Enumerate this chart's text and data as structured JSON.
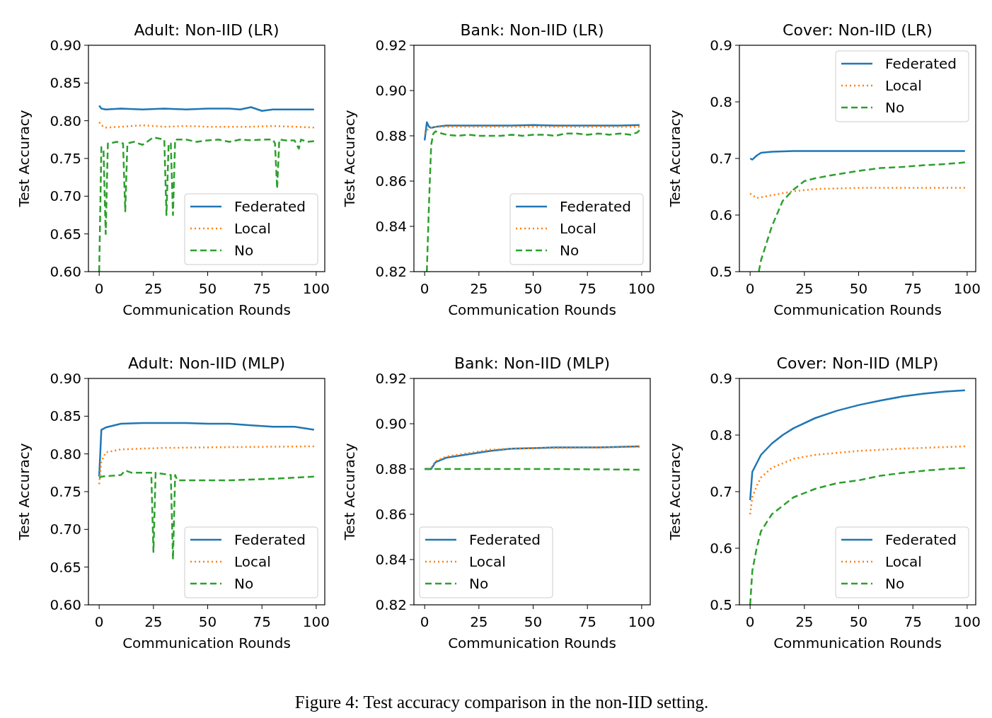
{
  "chart_data": [
    {
      "type": "line",
      "title": "Adult: Non-IID (LR)",
      "xlabel": "Communication Rounds",
      "ylabel": "Test Accuracy",
      "xlim": [
        -4.95,
        103.95
      ],
      "xticks": [
        0,
        25,
        50,
        75,
        100
      ],
      "ylim": [
        0.6,
        0.9
      ],
      "yticks": [
        {
          "value": 0.6,
          "label": "0.60"
        },
        0.65,
        {
          "value": 0.7,
          "label": "0.70"
        },
        0.75,
        {
          "value": 0.8,
          "label": "0.80"
        },
        0.85,
        {
          "value": 0.9,
          "label": "0.90"
        }
      ],
      "legend": "bottom right",
      "series": [
        {
          "name": "Federated",
          "color": "#1f77b4",
          "line_style": "solid",
          "x": [
            0,
            1,
            3,
            10,
            20,
            30,
            40,
            50,
            60,
            65,
            70,
            75,
            80,
            90,
            99
          ],
          "values": [
            0.82,
            0.816,
            0.815,
            0.816,
            0.815,
            0.816,
            0.815,
            0.816,
            0.816,
            0.815,
            0.818,
            0.813,
            0.815,
            0.815,
            0.815
          ]
        },
        {
          "name": "Local",
          "color": "#ff7f0e",
          "line_style": "dotted",
          "x": [
            0,
            1,
            3,
            10,
            20,
            30,
            40,
            50,
            60,
            70,
            80,
            90,
            99
          ],
          "values": [
            0.798,
            0.794,
            0.791,
            0.792,
            0.794,
            0.792,
            0.793,
            0.792,
            0.792,
            0.792,
            0.793,
            0.792,
            0.791
          ]
        },
        {
          "name": "No",
          "color": "#2ca02c",
          "line_style": "dashed",
          "x": [
            0,
            1,
            2,
            3,
            4,
            5,
            8,
            11,
            12,
            13,
            16,
            20,
            25,
            30,
            31,
            32,
            33,
            34,
            35,
            40,
            45,
            50,
            55,
            60,
            65,
            70,
            75,
            80,
            81,
            82,
            83,
            86,
            90,
            92,
            93,
            96,
            99
          ],
          "values": [
            0.6,
            0.765,
            0.76,
            0.65,
            0.77,
            0.77,
            0.772,
            0.77,
            0.68,
            0.77,
            0.772,
            0.768,
            0.778,
            0.775,
            0.675,
            0.77,
            0.77,
            0.675,
            0.775,
            0.775,
            0.772,
            0.774,
            0.775,
            0.772,
            0.775,
            0.774,
            0.775,
            0.775,
            0.77,
            0.71,
            0.775,
            0.774,
            0.774,
            0.763,
            0.775,
            0.772,
            0.773
          ]
        }
      ]
    },
    {
      "type": "line",
      "title": "Bank: Non-IID (LR)",
      "xlabel": "Communication Rounds",
      "ylabel": "Test Accuracy",
      "xlim": [
        -4.95,
        103.95
      ],
      "xticks": [
        0,
        25,
        50,
        75,
        100
      ],
      "ylim": [
        0.82,
        0.92
      ],
      "yticks": [
        0.82,
        0.84,
        0.86,
        0.88,
        {
          "value": 0.9,
          "label": "0.90"
        },
        0.92
      ],
      "legend": "bottom right",
      "series": [
        {
          "name": "Federated",
          "color": "#1f77b4",
          "line_style": "solid",
          "x": [
            0,
            1,
            2,
            3,
            5,
            10,
            20,
            30,
            40,
            50,
            60,
            70,
            80,
            90,
            99
          ],
          "values": [
            0.878,
            0.886,
            0.884,
            0.8835,
            0.884,
            0.8845,
            0.8845,
            0.8845,
            0.8845,
            0.8848,
            0.8845,
            0.8845,
            0.8845,
            0.8845,
            0.8848
          ]
        },
        {
          "name": "Local",
          "color": "#ff7f0e",
          "line_style": "dotted",
          "x": [
            0,
            1,
            3,
            5,
            10,
            20,
            40,
            60,
            80,
            99
          ],
          "values": [
            0.881,
            0.8825,
            0.8835,
            0.884,
            0.884,
            0.884,
            0.884,
            0.884,
            0.884,
            0.884
          ]
        },
        {
          "name": "No",
          "color": "#2ca02c",
          "line_style": "dashed",
          "x": [
            1,
            2,
            3,
            4,
            5,
            8,
            10,
            15,
            20,
            25,
            30,
            35,
            40,
            45,
            50,
            55,
            60,
            65,
            70,
            75,
            80,
            85,
            90,
            95,
            98,
            99
          ],
          "values": [
            0.82,
            0.85,
            0.876,
            0.881,
            0.882,
            0.881,
            0.8805,
            0.88,
            0.8805,
            0.88,
            0.88,
            0.88,
            0.8805,
            0.88,
            0.8805,
            0.8805,
            0.88,
            0.881,
            0.881,
            0.8805,
            0.881,
            0.8805,
            0.881,
            0.8805,
            0.8815,
            0.8825
          ]
        }
      ]
    },
    {
      "type": "line",
      "title": "Cover: Non-IID (LR)",
      "xlabel": "Communication Rounds",
      "ylabel": "Test Accuracy",
      "xlim": [
        -4.95,
        103.95
      ],
      "xticks": [
        0,
        25,
        50,
        75,
        100
      ],
      "ylim": [
        0.5,
        0.9
      ],
      "yticks": [
        0.5,
        0.6,
        0.7,
        0.8,
        0.9
      ],
      "legend": "top right",
      "series": [
        {
          "name": "Federated",
          "color": "#1f77b4",
          "line_style": "solid",
          "x": [
            0,
            1,
            3,
            5,
            10,
            20,
            40,
            60,
            80,
            99
          ],
          "values": [
            0.7,
            0.698,
            0.705,
            0.71,
            0.712,
            0.713,
            0.713,
            0.713,
            0.713,
            0.713
          ]
        },
        {
          "name": "Local",
          "color": "#ff7f0e",
          "line_style": "dotted",
          "x": [
            0,
            3,
            10,
            20,
            30,
            50,
            70,
            99
          ],
          "values": [
            0.638,
            0.63,
            0.635,
            0.642,
            0.646,
            0.648,
            0.648,
            0.648
          ]
        },
        {
          "name": "No",
          "color": "#2ca02c",
          "line_style": "dashed",
          "x": [
            4,
            5,
            10,
            15,
            20,
            25,
            30,
            40,
            50,
            60,
            70,
            80,
            90,
            99
          ],
          "values": [
            0.5,
            0.52,
            0.58,
            0.625,
            0.645,
            0.66,
            0.665,
            0.672,
            0.678,
            0.683,
            0.685,
            0.688,
            0.69,
            0.693
          ]
        }
      ]
    },
    {
      "type": "line",
      "title": "Adult: Non-IID (MLP)",
      "xlabel": "Communication Rounds",
      "ylabel": "Test Accuracy",
      "xlim": [
        -4.95,
        103.95
      ],
      "xticks": [
        0,
        25,
        50,
        75,
        100
      ],
      "ylim": [
        0.6,
        0.9
      ],
      "yticks": [
        {
          "value": 0.6,
          "label": "0.60"
        },
        0.65,
        {
          "value": 0.7,
          "label": "0.70"
        },
        0.75,
        {
          "value": 0.8,
          "label": "0.80"
        },
        0.85,
        {
          "value": 0.9,
          "label": "0.90"
        }
      ],
      "legend": "bottom right",
      "series": [
        {
          "name": "Federated",
          "color": "#1f77b4",
          "line_style": "solid",
          "x": [
            0,
            1,
            3,
            10,
            20,
            30,
            40,
            50,
            60,
            70,
            80,
            90,
            99
          ],
          "values": [
            0.77,
            0.832,
            0.835,
            0.84,
            0.841,
            0.841,
            0.841,
            0.84,
            0.84,
            0.838,
            0.836,
            0.836,
            0.832
          ]
        },
        {
          "name": "Local",
          "color": "#ff7f0e",
          "line_style": "dotted",
          "x": [
            0,
            1,
            3,
            10,
            30,
            60,
            99
          ],
          "values": [
            0.76,
            0.79,
            0.802,
            0.806,
            0.808,
            0.809,
            0.81
          ]
        },
        {
          "name": "No",
          "color": "#2ca02c",
          "line_style": "dashed",
          "x": [
            0,
            1,
            10,
            12,
            15,
            24,
            25,
            26,
            33,
            34,
            35,
            36,
            60,
            80,
            99
          ],
          "values": [
            0.768,
            0.77,
            0.772,
            0.778,
            0.775,
            0.775,
            0.67,
            0.775,
            0.772,
            0.66,
            0.772,
            0.765,
            0.765,
            0.767,
            0.77
          ]
        }
      ]
    },
    {
      "type": "line",
      "title": "Bank: Non-IID (MLP)",
      "xlabel": "Communication Rounds",
      "ylabel": "Test Accuracy",
      "xlim": [
        -4.95,
        103.95
      ],
      "xticks": [
        0,
        25,
        50,
        75,
        100
      ],
      "ylim": [
        0.82,
        0.92
      ],
      "yticks": [
        0.82,
        0.84,
        0.86,
        0.88,
        {
          "value": 0.9,
          "label": "0.90"
        },
        0.92
      ],
      "legend": "bottom left",
      "series": [
        {
          "name": "Federated",
          "color": "#1f77b4",
          "line_style": "solid",
          "x": [
            0,
            3,
            5,
            10,
            20,
            30,
            40,
            60,
            80,
            99
          ],
          "values": [
            0.88,
            0.88,
            0.883,
            0.885,
            0.8865,
            0.888,
            0.889,
            0.8895,
            0.8895,
            0.89
          ]
        },
        {
          "name": "Local",
          "color": "#ff7f0e",
          "line_style": "dotted",
          "x": [
            3,
            5,
            10,
            20,
            30,
            40,
            60,
            80,
            99
          ],
          "values": [
            0.8805,
            0.8835,
            0.8855,
            0.887,
            0.8885,
            0.889,
            0.8893,
            0.8895,
            0.8898
          ]
        },
        {
          "name": "No",
          "color": "#2ca02c",
          "line_style": "dashed",
          "x": [
            0,
            10,
            30,
            60,
            99
          ],
          "values": [
            0.88,
            0.88,
            0.88,
            0.88,
            0.8797
          ]
        }
      ]
    },
    {
      "type": "line",
      "title": "Cover: Non-IID (MLP)",
      "xlabel": "Communication Rounds",
      "ylabel": "Test Accuracy",
      "xlim": [
        -4.95,
        103.95
      ],
      "xticks": [
        0,
        25,
        50,
        75,
        100
      ],
      "ylim": [
        0.5,
        0.9
      ],
      "yticks": [
        0.5,
        0.6,
        0.7,
        0.8,
        0.9
      ],
      "legend": "bottom right",
      "annotations": [
        "Figure 4: Test accuracy comparison in the non-IID setting."
      ],
      "series": [
        {
          "name": "Federated",
          "color": "#1f77b4",
          "line_style": "solid",
          "x": [
            0,
            1,
            3,
            5,
            10,
            15,
            20,
            30,
            40,
            50,
            60,
            70,
            80,
            90,
            99
          ],
          "values": [
            0.685,
            0.735,
            0.75,
            0.765,
            0.785,
            0.8,
            0.812,
            0.83,
            0.843,
            0.853,
            0.861,
            0.868,
            0.873,
            0.877,
            0.879
          ]
        },
        {
          "name": "Local",
          "color": "#ff7f0e",
          "line_style": "dotted",
          "x": [
            0,
            1,
            3,
            5,
            10,
            20,
            30,
            50,
            70,
            99
          ],
          "values": [
            0.66,
            0.69,
            0.71,
            0.725,
            0.742,
            0.758,
            0.765,
            0.772,
            0.776,
            0.78
          ]
        },
        {
          "name": "No",
          "color": "#2ca02c",
          "line_style": "dashed",
          "x": [
            0,
            1,
            3,
            5,
            10,
            15,
            20,
            30,
            40,
            50,
            60,
            70,
            80,
            90,
            99
          ],
          "values": [
            0.5,
            0.56,
            0.6,
            0.63,
            0.66,
            0.675,
            0.69,
            0.705,
            0.715,
            0.72,
            0.728,
            0.733,
            0.737,
            0.74,
            0.742
          ]
        }
      ]
    }
  ]
}
